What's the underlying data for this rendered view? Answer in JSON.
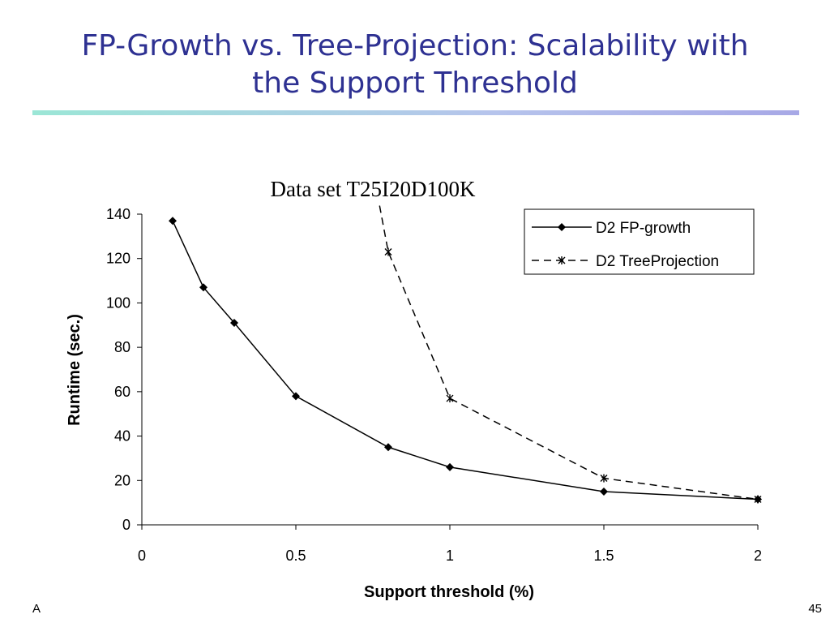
{
  "slide": {
    "title_line1": "FP-Growth vs. Tree-Projection: Scalability with",
    "title_line2": "the Support Threshold",
    "footer_left": "A",
    "page_number": "45"
  },
  "chart_data": {
    "type": "line",
    "title": "Data set T25I20D100K",
    "xlabel": "Support threshold (%)",
    "ylabel": "Runtime (sec.)",
    "xlim": [
      0,
      2
    ],
    "ylim": [
      0,
      140
    ],
    "xticks": [
      0,
      0.5,
      1,
      1.5,
      2
    ],
    "xtick_labels": [
      "0",
      "0.5",
      "1",
      "1.5",
      "2"
    ],
    "yticks": [
      0,
      20,
      40,
      60,
      80,
      100,
      120,
      140
    ],
    "ytick_labels": [
      "0",
      "20",
      "40",
      "60",
      "80",
      "100",
      "120",
      "140"
    ],
    "grid": false,
    "legend_position": "top-right",
    "series": [
      {
        "name": "D2 FP-growth",
        "style": "solid",
        "marker": "diamond",
        "color": "#000000",
        "x": [
          0.1,
          0.2,
          0.3,
          0.5,
          0.8,
          1.0,
          1.5,
          2.0
        ],
        "y": [
          137,
          107,
          91,
          58,
          35,
          26,
          15,
          11.5
        ]
      },
      {
        "name": "D2 TreeProjection",
        "style": "dashed",
        "marker": "star",
        "color": "#000000",
        "x": [
          0.75,
          0.8,
          1.0,
          1.5,
          2.0
        ],
        "y": [
          160,
          123,
          57,
          21,
          11.5
        ]
      }
    ]
  }
}
